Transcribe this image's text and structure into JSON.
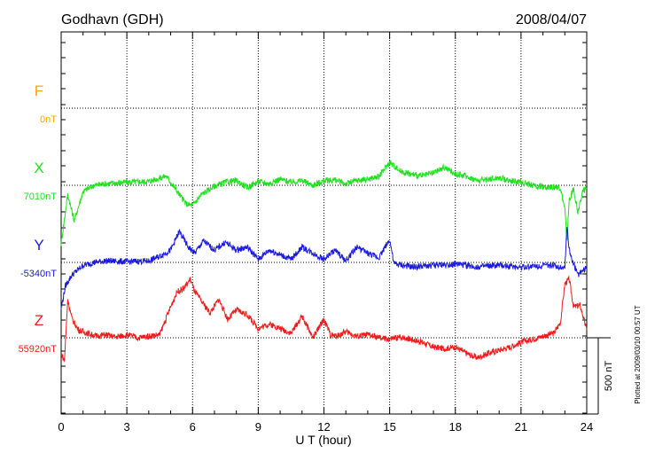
{
  "header": {
    "station": "Godhavn (GDH)",
    "date": "2008/04/07"
  },
  "footer": {
    "plotted_note": "Plotted at 2009/03/10 00:57 UT"
  },
  "scale_bar": {
    "label": "500 nT",
    "value_nT": 500
  },
  "chart_data": {
    "type": "line",
    "title": "Godhavn (GDH)",
    "date": "2008/04/07",
    "xlabel": "U T (hour)",
    "xlim": [
      0,
      24
    ],
    "xticks": [
      "0",
      "3",
      "6",
      "9",
      "12",
      "15",
      "18",
      "21",
      "24"
    ],
    "grid": true,
    "nT_per_division": 500,
    "series": [
      {
        "name": "F",
        "baseline_label": "0nT",
        "baseline_nT": 0,
        "color": "#f5a800",
        "x": [],
        "offset_nT": []
      },
      {
        "name": "X",
        "baseline_label": "7010nT",
        "baseline_nT": 7010,
        "color": "#20e020",
        "x": [
          0,
          0.3,
          0.6,
          1,
          1.5,
          2,
          3,
          4,
          4.8,
          5.3,
          5.7,
          6.0,
          6.4,
          7,
          7.5,
          8,
          8.5,
          9,
          9.5,
          10,
          10.5,
          11,
          11.5,
          12,
          12.5,
          13,
          13.5,
          14,
          14.5,
          15,
          15.5,
          16,
          16.5,
          17,
          17.5,
          18,
          18.5,
          19,
          19.5,
          20,
          20.5,
          21,
          21.5,
          22,
          22.5,
          22.8,
          23.0,
          23.1,
          23.2,
          23.4,
          23.6,
          23.8,
          24
        ],
        "offset_nT": [
          -380,
          -60,
          -230,
          -40,
          0,
          10,
          20,
          25,
          60,
          -40,
          -120,
          -130,
          -60,
          -5,
          20,
          30,
          -15,
          25,
          10,
          40,
          20,
          30,
          0,
          30,
          35,
          10,
          30,
          40,
          55,
          150,
          90,
          70,
          60,
          80,
          115,
          75,
          60,
          30,
          40,
          50,
          30,
          20,
          0,
          -10,
          -10,
          -20,
          -160,
          -360,
          -100,
          -20,
          -180,
          -40,
          -20
        ]
      },
      {
        "name": "Y",
        "baseline_label": "-5340nT",
        "baseline_nT": -5340,
        "color": "#1a1ae0",
        "x": [
          0,
          0.2,
          0.5,
          1,
          1.5,
          2,
          3,
          4,
          4.5,
          5,
          5.4,
          5.8,
          6.1,
          6.5,
          7,
          7.5,
          8,
          8.5,
          9,
          9.5,
          10,
          10.5,
          11,
          11.5,
          12,
          12.5,
          13,
          13.5,
          14,
          14.5,
          15,
          15.2,
          16,
          17,
          18,
          19,
          20,
          21,
          22,
          22.5,
          22.8,
          23.0,
          23.1,
          23.2,
          23.4,
          23.6,
          24
        ],
        "offset_nT": [
          -300,
          -150,
          -80,
          -20,
          0,
          10,
          5,
          10,
          40,
          80,
          200,
          100,
          60,
          140,
          80,
          130,
          80,
          100,
          20,
          80,
          50,
          20,
          100,
          60,
          20,
          80,
          10,
          100,
          60,
          30,
          150,
          -10,
          -30,
          -20,
          -10,
          -30,
          -20,
          -30,
          -20,
          -20,
          -30,
          -30,
          240,
          80,
          -10,
          -80,
          -30
        ]
      },
      {
        "name": "Z",
        "baseline_label": "55920nT",
        "baseline_nT": 55920,
        "color": "#ee1c1c",
        "x": [
          0,
          0.15,
          0.3,
          0.5,
          0.8,
          1.2,
          1.6,
          2,
          2.5,
          3,
          3.5,
          4,
          4.5,
          5,
          5.3,
          5.6,
          5.9,
          6.1,
          6.4,
          6.8,
          7.2,
          7.6,
          8,
          8.5,
          9,
          9.5,
          10,
          10.5,
          11,
          11.5,
          12,
          12.3,
          12.6,
          13,
          13.5,
          14,
          14.5,
          15,
          15.5,
          16,
          16.5,
          17,
          17.5,
          18,
          18.5,
          19,
          19.5,
          20,
          20.5,
          21,
          21.5,
          22,
          22.5,
          22.8,
          23.0,
          23.2,
          23.4,
          23.7,
          24
        ],
        "offset_nT": [
          -100,
          -150,
          250,
          120,
          50,
          30,
          10,
          20,
          5,
          20,
          0,
          10,
          20,
          200,
          300,
          320,
          380,
          300,
          240,
          160,
          250,
          120,
          180,
          150,
          60,
          90,
          60,
          30,
          140,
          0,
          120,
          20,
          10,
          40,
          10,
          20,
          0,
          -10,
          5,
          -10,
          -30,
          -60,
          -70,
          -60,
          -100,
          -130,
          -100,
          -80,
          -60,
          -30,
          -10,
          10,
          30,
          100,
          350,
          380,
          200,
          210,
          50
        ]
      }
    ]
  }
}
